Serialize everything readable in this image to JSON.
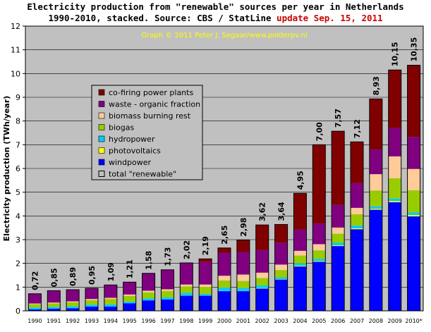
{
  "chart_data": {
    "type": "bar",
    "stacked": true,
    "title_line1": "Electricity production from \"renewable\" sources per year in Netherlands",
    "title_line2": "1990-2010, stacked. Source: CBS / StatLine",
    "title_update": "update Sep. 15, 2011",
    "credit": "Graph © 2011 Peter J. Segaar/www.polderpv.nl",
    "ylabel": "Electricity production (TWh/year)",
    "xlabel": "",
    "ylim": [
      0,
      12
    ],
    "yticks": [
      "0",
      "1",
      "2",
      "3",
      "4",
      "5",
      "6",
      "7",
      "8",
      "9",
      "10",
      "11",
      "12"
    ],
    "grid": true,
    "legend_placement": "upper-left inside plot",
    "categories": [
      "1990",
      "1991",
      "1992",
      "1993",
      "1994",
      "1995",
      "1996",
      "1997",
      "1998",
      "1999",
      "2000",
      "2001",
      "2002",
      "2003",
      "2004",
      "2005",
      "2006",
      "2007",
      "2008",
      "2009",
      "2010*"
    ],
    "totals": [
      "0,72",
      "0,85",
      "0,89",
      "0,95",
      "1,09",
      "1,21",
      "1,58",
      "1,73",
      "2,02",
      "2,19",
      "2,65",
      "2,98",
      "3,62",
      "3,64",
      "4,95",
      "7,00",
      "7,57",
      "7,12",
      "8,93",
      "10,15",
      "10,35"
    ],
    "series": [
      {
        "name": "windpower",
        "color": "#0000ff",
        "values": [
          0.06,
          0.09,
          0.11,
          0.18,
          0.18,
          0.32,
          0.44,
          0.48,
          0.64,
          0.64,
          0.83,
          0.83,
          0.94,
          1.32,
          1.87,
          2.07,
          2.73,
          3.44,
          4.26,
          4.58,
          3.98
        ]
      },
      {
        "name": "photovoltaics",
        "color": "#ffff00",
        "values": [
          0,
          0,
          0,
          0,
          0,
          0,
          0,
          0,
          0.01,
          0.01,
          0.01,
          0.01,
          0.02,
          0.02,
          0.03,
          0.03,
          0.03,
          0.04,
          0.04,
          0.05,
          0.06
        ]
      },
      {
        "name": "hydropower",
        "color": "#00ccff",
        "values": [
          0.08,
          0.07,
          0.08,
          0.08,
          0.09,
          0.07,
          0.08,
          0.09,
          0.11,
          0.07,
          0.14,
          0.12,
          0.11,
          0.07,
          0.1,
          0.09,
          0.11,
          0.11,
          0.1,
          0.1,
          0.11
        ]
      },
      {
        "name": "biogas",
        "color": "#99cc00",
        "values": [
          0.14,
          0.15,
          0.17,
          0.19,
          0.23,
          0.24,
          0.26,
          0.27,
          0.27,
          0.29,
          0.3,
          0.3,
          0.31,
          0.31,
          0.33,
          0.36,
          0.38,
          0.48,
          0.67,
          0.86,
          0.93
        ]
      },
      {
        "name": "biomass burning rest",
        "color": "#ffcc99",
        "values": [
          0.03,
          0.04,
          0.04,
          0.05,
          0.05,
          0.06,
          0.07,
          0.07,
          0.08,
          0.1,
          0.2,
          0.27,
          0.23,
          0.23,
          0.2,
          0.26,
          0.26,
          0.27,
          0.69,
          0.92,
          0.9
        ]
      },
      {
        "name": "waste - organic fraction",
        "color": "#800080",
        "values": [
          0.41,
          0.5,
          0.49,
          0.45,
          0.54,
          0.52,
          0.73,
          0.82,
          0.9,
          0.95,
          0.97,
          0.95,
          0.95,
          0.92,
          0.89,
          0.87,
          0.95,
          1.04,
          1.04,
          1.2,
          1.35
        ]
      },
      {
        "name": "co-firing power plants",
        "color": "#800000",
        "values": [
          0,
          0,
          0,
          0,
          0,
          0,
          0,
          0,
          0.01,
          0.13,
          0.2,
          0.5,
          1.06,
          0.77,
          1.53,
          3.32,
          3.11,
          1.74,
          2.13,
          2.44,
          3.02
        ]
      }
    ],
    "legend_entries": [
      "co-firing power plants",
      "waste - organic fraction",
      "biomass burning rest",
      "biogas",
      "hydropower",
      "photovoltaics",
      "windpower",
      "total \"renewable\""
    ],
    "total_legend_label": "total \"renewable\""
  }
}
